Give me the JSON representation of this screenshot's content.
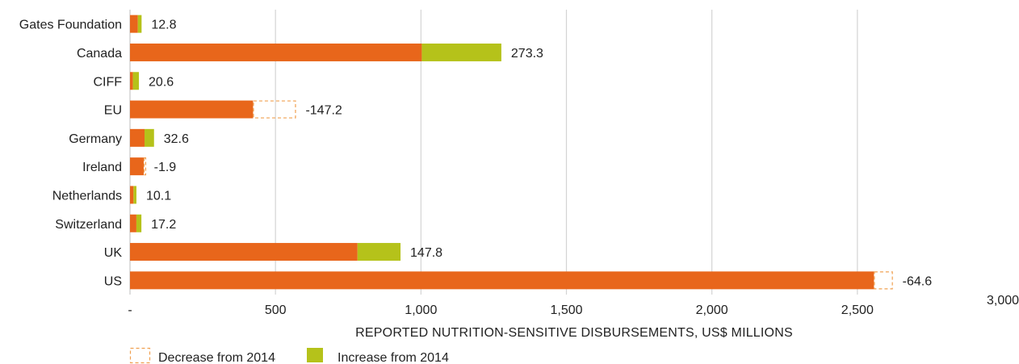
{
  "chart_data": {
    "type": "bar",
    "orientation": "horizontal",
    "stacked": true,
    "categories": [
      "Gates Foundation",
      "Canada",
      "CIFF",
      "EU",
      "Germany",
      "Ireland",
      "Netherlands",
      "Switzerland",
      "UK",
      "US"
    ],
    "series": [
      {
        "values": [
          27,
          1003,
          10,
          423,
          50,
          47,
          12,
          22,
          782,
          2557
        ]
      },
      {
        "name": "Increase from 2014",
        "values": [
          12.8,
          273.3,
          20.6,
          null,
          32.6,
          null,
          10.1,
          17.2,
          147.8,
          null
        ]
      },
      {
        "name": "Decrease from 2014",
        "values": [
          null,
          null,
          null,
          -147.2,
          null,
          -1.9,
          null,
          null,
          null,
          -64.6
        ]
      }
    ],
    "data_labels": [
      "12.8",
      "273.3",
      "20.6",
      "-147.2",
      "32.6",
      "-1.9",
      "10.1",
      "17.2",
      "147.8",
      "-64.6"
    ],
    "xlabel": "REPORTED NUTRITION-SENSITIVE DISBURSEMENTS, US$ MILLIONS",
    "xlim": [
      0,
      3000
    ],
    "xticks": [
      0,
      500,
      1000,
      1500,
      2000,
      2500,
      3000
    ],
    "xtick_labels": [
      "-",
      "500",
      "1,000",
      "1,500",
      "2,000",
      "2,500",
      "3,000"
    ],
    "grid": true,
    "legend_position": "bottom-left",
    "colors": {
      "base": "#e8661b",
      "increase": "#b5c21a",
      "decrease_border": "#f0a050",
      "grid": "#d4d4d4"
    }
  }
}
